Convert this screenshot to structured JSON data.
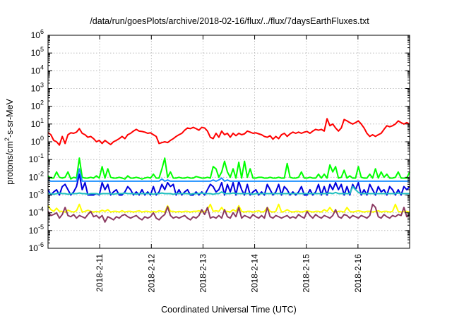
{
  "chart_data": {
    "type": "line",
    "title": "/data/run/goesPlots/archive/2018-02-16/flux/../flux/7daysEarthFluxes.txt",
    "xlabel": "Coordinated Universal Time (UTC)",
    "ylabel_base": "protons/cm",
    "ylabel_sup": "2",
    "ylabel_rest": "-s-sr-MeV",
    "yscale": "log",
    "ylim_exp": [
      -6,
      6
    ],
    "ytick_labels": [
      {
        "base": "10",
        "exp": "6"
      },
      {
        "base": "10",
        "exp": "5"
      },
      {
        "base": "10",
        "exp": "4"
      },
      {
        "base": "10",
        "exp": "3"
      },
      {
        "base": "10",
        "exp": "2"
      },
      {
        "base": "10",
        "exp": "1"
      },
      {
        "base": "10",
        "exp": "0"
      },
      {
        "base": "10",
        "exp": "-1"
      },
      {
        "base": "10",
        "exp": "-2"
      },
      {
        "base": "10",
        "exp": "-3"
      },
      {
        "base": "10",
        "exp": "-4"
      },
      {
        "base": "10",
        "exp": "-5"
      },
      {
        "base": "10",
        "exp": "-6"
      }
    ],
    "xlim": [
      "2018-02-10T00:00",
      "2018-02-17T00:00"
    ],
    "xtick_labels": [
      "2018-2-11",
      "2018-2-12",
      "2018-2-13",
      "2018-2-14",
      "2018-2-15",
      "2018-2-16"
    ],
    "grid": true,
    "legend": "none",
    "series": [
      {
        "color": "#ff0000",
        "values": [
          3.3,
          2.5,
          1.2,
          1.0,
          0.65,
          2.0,
          0.8,
          2.5,
          3.2,
          3.0,
          3.5,
          5.5,
          3.0,
          2.5,
          1.8,
          2.0,
          1.5,
          1.0,
          1.2,
          0.8,
          1.2,
          0.9,
          0.7,
          1.0,
          1.2,
          1.5,
          2.0,
          1.5,
          2.5,
          3.0,
          4.0,
          5.0,
          4.0,
          3.8,
          3.5,
          3.0,
          3.2,
          2.5,
          2.0,
          0.8,
          0.9,
          1.0,
          0.9,
          1.2,
          1.5,
          2.0,
          2.5,
          3.0,
          4.5,
          6.0,
          5.5,
          6.5,
          5.5,
          4.5,
          6.5,
          6.0,
          4.0,
          1.8,
          1.5,
          3.0,
          1.8,
          4.0,
          2.5,
          3.0,
          1.8,
          3.0,
          2.2,
          3.0,
          2.5,
          2.8,
          4.0,
          3.5,
          3.0,
          3.2,
          2.8,
          2.5,
          2.0,
          1.8,
          2.2,
          1.4,
          2.0,
          1.5,
          2.5,
          3.0,
          2.0,
          2.8,
          3.5,
          3.0,
          3.5,
          3.0,
          3.5,
          3.8,
          3.0,
          4.0,
          5.0,
          4.5,
          5.0,
          4.0,
          20.0,
          8.0,
          10.0,
          6.0,
          4.0,
          6.0,
          18.0,
          15.0,
          12.0,
          10.0,
          12.0,
          15.0,
          10.0,
          6.0,
          3.0,
          2.0,
          2.5,
          2.0,
          2.5,
          3.0,
          5.0,
          8.0,
          7.0,
          8.0,
          10.0,
          15.0,
          12.0,
          10.0,
          12.0,
          10.0
        ]
      },
      {
        "color": "#00ff00",
        "values": [
          0.012,
          0.009,
          0.009,
          0.02,
          0.01,
          0.009,
          0.01,
          0.02,
          0.008,
          0.01,
          0.009,
          0.12,
          0.01,
          0.009,
          0.009,
          0.01,
          0.009,
          0.012,
          0.009,
          0.04,
          0.009,
          0.03,
          0.01,
          0.009,
          0.009,
          0.01,
          0.009,
          0.008,
          0.012,
          0.009,
          0.009,
          0.01,
          0.009,
          0.008,
          0.009,
          0.01,
          0.009,
          0.015,
          0.009,
          0.009,
          0.03,
          0.12,
          0.01,
          0.02,
          0.009,
          0.009,
          0.01,
          0.009,
          0.009,
          0.01,
          0.009,
          0.009,
          0.011,
          0.01,
          0.009,
          0.009,
          0.01,
          0.009,
          0.04,
          0.03,
          0.01,
          0.02,
          0.08,
          0.02,
          0.01,
          0.03,
          0.009,
          0.07,
          0.009,
          0.08,
          0.01,
          0.03,
          0.009,
          0.009,
          0.01,
          0.01,
          0.009,
          0.009,
          0.01,
          0.009,
          0.009,
          0.01,
          0.009,
          0.009,
          0.06,
          0.01,
          0.009,
          0.009,
          0.01,
          0.02,
          0.009,
          0.009,
          0.01,
          0.009,
          0.009,
          0.015,
          0.009,
          0.015,
          0.009,
          0.05,
          0.02,
          0.04,
          0.009,
          0.01,
          0.025,
          0.009,
          0.012,
          0.009,
          0.009,
          0.04,
          0.01,
          0.009,
          0.009,
          0.015,
          0.009,
          0.03,
          0.009,
          0.02,
          0.01,
          0.015,
          0.009,
          0.009,
          0.01,
          0.02,
          0.009,
          0.009,
          0.009,
          0.02
        ]
      },
      {
        "color": "#0000dd",
        "values": [
          0.002,
          0.001,
          0.0015,
          0.002,
          0.001,
          0.003,
          0.004,
          0.002,
          0.001,
          0.0015,
          0.003,
          0.015,
          0.002,
          0.005,
          0.001,
          0.001,
          0.001,
          0.0012,
          0.001,
          0.005,
          0.002,
          0.004,
          0.001,
          0.0015,
          0.002,
          0.001,
          0.001,
          0.0015,
          0.003,
          0.002,
          0.001,
          0.0015,
          0.001,
          0.002,
          0.001,
          0.0015,
          0.001,
          0.003,
          0.001,
          0.0015,
          0.004,
          0.002,
          0.005,
          0.003,
          0.004,
          0.001,
          0.002,
          0.001,
          0.0015,
          0.002,
          0.001,
          0.001,
          0.0015,
          0.001,
          0.0015,
          0.001,
          0.002,
          0.004,
          0.003,
          0.0015,
          0.002,
          0.005,
          0.001,
          0.004,
          0.0015,
          0.005,
          0.001,
          0.006,
          0.002,
          0.001,
          0.004,
          0.001,
          0.0015,
          0.002,
          0.001,
          0.0015,
          0.001,
          0.004,
          0.002,
          0.001,
          0.0015,
          0.004,
          0.001,
          0.003,
          0.002,
          0.001,
          0.0015,
          0.001,
          0.0015,
          0.003,
          0.001,
          0.001,
          0.002,
          0.001,
          0.0015,
          0.004,
          0.001,
          0.003,
          0.001,
          0.004,
          0.002,
          0.005,
          0.002,
          0.004,
          0.001,
          0.003,
          0.001,
          0.004,
          0.002,
          0.005,
          0.001,
          0.002,
          0.001,
          0.004,
          0.002,
          0.001,
          0.003,
          0.0015,
          0.002,
          0.001,
          0.003,
          0.002,
          0.001,
          0.002,
          0.001,
          0.003,
          0.002,
          0.003
        ]
      },
      {
        "color": "#1e90ff",
        "values": [
          0.007,
          0.006,
          0.006,
          0.006,
          0.006,
          0.006,
          0.006,
          0.006,
          0.006,
          0.006,
          0.006,
          0.03,
          0.006,
          0.006,
          0.006,
          0.006,
          0.006,
          0.006,
          0.006,
          0.006,
          0.006,
          0.006,
          0.006,
          0.006,
          0.006,
          0.006,
          0.006,
          0.006,
          0.006,
          0.006,
          0.006,
          0.006,
          0.006,
          0.006,
          0.006,
          0.006,
          0.006,
          0.006,
          0.006,
          0.006,
          0.008,
          0.006,
          0.007,
          0.006,
          0.006,
          0.006,
          0.006,
          0.006,
          0.006,
          0.006,
          0.006,
          0.006,
          0.006,
          0.006,
          0.006,
          0.006,
          0.006,
          0.006,
          0.007,
          0.006,
          0.007,
          0.009,
          0.006,
          0.007,
          0.006,
          0.006,
          0.006,
          0.006,
          0.006,
          0.006,
          0.006,
          0.006,
          0.006,
          0.006,
          0.006,
          0.006,
          0.006,
          0.006,
          0.006,
          0.006,
          0.006,
          0.006,
          0.006,
          0.006,
          0.006,
          0.006,
          0.006,
          0.006,
          0.006,
          0.006,
          0.006,
          0.006,
          0.006,
          0.006,
          0.006,
          0.006,
          0.006,
          0.006,
          0.006,
          0.006,
          0.006,
          0.006,
          0.006,
          0.006,
          0.006,
          0.006,
          0.006,
          0.006,
          0.006,
          0.006,
          0.006,
          0.006,
          0.006,
          0.006,
          0.006,
          0.006,
          0.006,
          0.006,
          0.006,
          0.006,
          0.006,
          0.006,
          0.006,
          0.006,
          0.006,
          0.006,
          0.006,
          0.006
        ]
      },
      {
        "color": "#20c0c0",
        "values": [
          0.0012,
          0.0012,
          0.0011,
          0.0012,
          0.0013,
          0.0012,
          0.0012,
          0.0011,
          0.0012,
          0.0012,
          0.0012,
          0.0013,
          0.0012,
          0.0012,
          0.0011,
          0.0012,
          0.0012,
          0.0012,
          0.0011,
          0.0012,
          0.0012,
          0.0012,
          0.0012,
          0.0011,
          0.0012,
          0.0012,
          0.0012,
          0.0013,
          0.0012,
          0.0012,
          0.0012,
          0.0011,
          0.0012,
          0.0012,
          0.0012,
          0.0012,
          0.0012,
          0.0011,
          0.0012,
          0.0012,
          0.0013,
          0.0012,
          0.0012,
          0.0012,
          0.0011,
          0.0012,
          0.0012,
          0.0012,
          0.0012,
          0.0012,
          0.0011,
          0.0012,
          0.0012,
          0.0012,
          0.0013,
          0.0012,
          0.0012,
          0.0012,
          0.0011,
          0.0012,
          0.0012,
          0.0015,
          0.0012,
          0.0012,
          0.0012,
          0.0013,
          0.0012,
          0.0012,
          0.0012,
          0.0012,
          0.0012,
          0.0012,
          0.0011,
          0.0012,
          0.0012,
          0.0012,
          0.0012,
          0.0012,
          0.0012,
          0.0012,
          0.0012,
          0.0012,
          0.0012,
          0.0012,
          0.0012,
          0.0012,
          0.0012,
          0.0012,
          0.0012,
          0.0012,
          0.0012,
          0.0012,
          0.0012,
          0.0012,
          0.0012,
          0.0012,
          0.0012,
          0.0012,
          0.0012,
          0.0013,
          0.0012,
          0.0014,
          0.0012,
          0.0012,
          0.0012,
          0.0012,
          0.0012,
          0.003,
          0.002,
          0.0014,
          0.0012,
          0.0012,
          0.0012,
          0.0012,
          0.0012,
          0.0012,
          0.0012,
          0.0012,
          0.0012,
          0.0012,
          0.0012,
          0.0012,
          0.0012,
          0.0013,
          0.0012,
          0.0012,
          0.0012,
          0.0012
        ]
      },
      {
        "color": "#ffff00",
        "values": [
          0.00025,
          0.00015,
          0.00012,
          0.00018,
          0.00012,
          0.00012,
          0.00011,
          0.00014,
          0.00012,
          0.00011,
          0.00013,
          0.0003,
          0.00011,
          0.00012,
          0.00014,
          0.00012,
          0.00011,
          0.00012,
          0.00011,
          0.00014,
          0.00012,
          0.00015,
          0.00011,
          0.00012,
          0.00012,
          0.00011,
          0.00013,
          0.00011,
          0.00012,
          0.00012,
          0.00011,
          0.00012,
          0.00013,
          0.00011,
          0.00012,
          0.00012,
          0.00011,
          0.00012,
          0.00011,
          0.00013,
          0.00012,
          0.00011,
          0.00025,
          0.00012,
          0.00012,
          0.00011,
          0.00012,
          0.00011,
          0.00012,
          0.00012,
          0.00011,
          0.00012,
          0.00012,
          0.00013,
          0.00011,
          0.00012,
          0.00015,
          0.0003,
          0.00012,
          0.00013,
          0.00012,
          0.0002,
          0.00012,
          0.00012,
          0.00011,
          0.00015,
          0.00012,
          0.00025,
          0.00012,
          0.00011,
          0.00012,
          0.00012,
          0.00011,
          0.00012,
          0.00013,
          0.00011,
          0.00012,
          0.0002,
          0.00012,
          0.00011,
          0.00012,
          0.0003,
          0.00011,
          0.00012,
          0.00015,
          0.00012,
          0.00011,
          0.00012,
          0.00012,
          0.00011,
          0.00012,
          0.00013,
          0.00012,
          0.00011,
          0.00012,
          0.00012,
          0.00011,
          0.00015,
          0.00012,
          0.0002,
          0.00012,
          0.00011,
          0.00012,
          0.00012,
          0.00011,
          0.0002,
          0.00012,
          0.00011,
          0.00012,
          0.00013,
          0.00012,
          0.00011,
          0.00012,
          0.00012,
          0.00011,
          0.00012,
          0.00013,
          0.00011,
          0.00012,
          0.00012,
          0.00011,
          0.00012,
          0.0003,
          0.00012,
          0.00011,
          0.00012,
          0.00012,
          0.00011
        ]
      },
      {
        "color": "#8b3a62",
        "values": [
          0.00012,
          7e-05,
          8e-05,
          0.0001,
          5e-05,
          8e-05,
          0.0002,
          7e-05,
          6e-05,
          8e-05,
          5e-05,
          7e-05,
          6e-05,
          5e-05,
          8e-05,
          0.00012,
          6e-05,
          7e-05,
          5e-05,
          7e-05,
          3e-05,
          6e-05,
          5e-05,
          4e-05,
          6e-05,
          5e-05,
          7e-05,
          8e-05,
          6e-05,
          5e-05,
          6e-05,
          7e-05,
          5e-05,
          4e-05,
          6e-05,
          5e-05,
          6e-05,
          0.0001,
          5e-05,
          4e-05,
          6e-05,
          8e-05,
          0.00022,
          7e-05,
          5e-05,
          6e-05,
          5e-05,
          6e-05,
          7e-05,
          5e-05,
          4e-05,
          6e-05,
          5e-05,
          7e-05,
          0.00015,
          8e-05,
          0.0002,
          5e-05,
          6e-05,
          5e-05,
          7e-05,
          5e-05,
          0.00015,
          6e-05,
          5e-05,
          0.0001,
          6e-05,
          0.0002,
          5e-05,
          7e-05,
          6e-05,
          5e-05,
          8e-05,
          6e-05,
          5e-05,
          7e-05,
          5e-05,
          0.0002,
          6e-05,
          5e-05,
          7e-05,
          6e-05,
          5e-05,
          6e-05,
          7e-05,
          5e-05,
          6e-05,
          5e-05,
          8e-05,
          6e-05,
          5e-05,
          0.00012,
          7e-05,
          5e-05,
          8e-05,
          6e-05,
          5e-05,
          7e-05,
          6e-05,
          5e-05,
          7e-05,
          0.00015,
          6e-05,
          5e-05,
          8e-05,
          7e-05,
          5e-05,
          7e-05,
          6e-05,
          5e-05,
          7e-05,
          6e-05,
          5e-05,
          7e-05,
          0.0003,
          0.0002,
          6e-05,
          5e-05,
          8e-05,
          6e-05,
          5e-05,
          7e-05,
          6e-05,
          8e-05,
          7e-05,
          0.0002,
          6e-05,
          8e-05
        ]
      }
    ]
  }
}
